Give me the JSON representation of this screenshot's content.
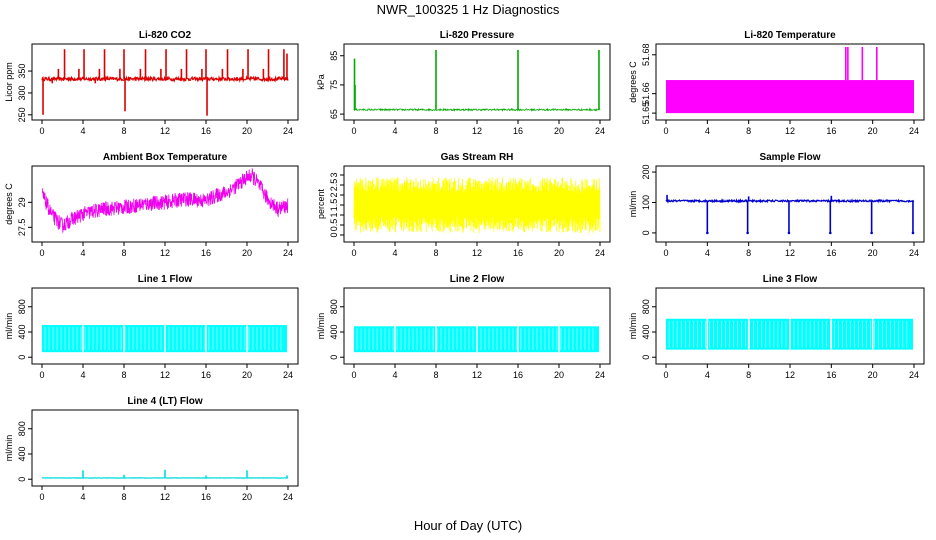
{
  "title": "NWR_100325  1 Hz Diagnostics",
  "xlabel": "Hour of Day (UTC)",
  "chart_data": [
    {
      "type": "line",
      "title": "Li-820 CO2",
      "ylabel": "Licor ppm",
      "color": "#dd0000",
      "xlim": [
        0,
        24
      ],
      "ylim": [
        245,
        405
      ],
      "yticks": [
        250,
        300,
        350
      ],
      "xticks": [
        0,
        4,
        8,
        12,
        16,
        20,
        24
      ],
      "baseline": 332,
      "band": 4,
      "spikes": [
        {
          "x": 0.1,
          "y": 250
        },
        {
          "x": 1.0,
          "y": 322
        },
        {
          "x": 1.6,
          "y": 355
        },
        {
          "x": 2.2,
          "y": 400
        },
        {
          "x": 3.6,
          "y": 355
        },
        {
          "x": 4.1,
          "y": 400
        },
        {
          "x": 5.2,
          "y": 322
        },
        {
          "x": 5.6,
          "y": 355
        },
        {
          "x": 6.1,
          "y": 400
        },
        {
          "x": 7.6,
          "y": 355
        },
        {
          "x": 8.0,
          "y": 400
        },
        {
          "x": 8.1,
          "y": 258
        },
        {
          "x": 9.6,
          "y": 355
        },
        {
          "x": 10.1,
          "y": 400
        },
        {
          "x": 11.6,
          "y": 355
        },
        {
          "x": 12.1,
          "y": 400
        },
        {
          "x": 13.6,
          "y": 355
        },
        {
          "x": 14.1,
          "y": 400
        },
        {
          "x": 15.6,
          "y": 355
        },
        {
          "x": 16.0,
          "y": 400
        },
        {
          "x": 16.1,
          "y": 248
        },
        {
          "x": 17.6,
          "y": 355
        },
        {
          "x": 18.1,
          "y": 400
        },
        {
          "x": 19.6,
          "y": 355
        },
        {
          "x": 20.1,
          "y": 400
        },
        {
          "x": 21.6,
          "y": 355
        },
        {
          "x": 22.1,
          "y": 400
        },
        {
          "x": 23.6,
          "y": 400
        },
        {
          "x": 23.9,
          "y": 390
        }
      ]
    },
    {
      "type": "line",
      "title": "Li-820 Pressure",
      "ylabel": "kPa",
      "color": "#00aa00",
      "xlim": [
        0,
        24
      ],
      "ylim": [
        64,
        88
      ],
      "yticks": [
        65,
        75,
        85
      ],
      "xticks": [
        0,
        4,
        8,
        12,
        16,
        20,
        24
      ],
      "baseline": 66.5,
      "band": 0.3,
      "spikes": [
        {
          "x": 0.05,
          "y": 84
        },
        {
          "x": 0.1,
          "y": 75
        },
        {
          "x": 8.0,
          "y": 87
        },
        {
          "x": 16.0,
          "y": 87
        },
        {
          "x": 23.9,
          "y": 87
        }
      ]
    },
    {
      "type": "area",
      "title": "Li-820 Temperature",
      "ylabel": "degrees C",
      "color": "#ff00ff",
      "xlim": [
        0,
        24
      ],
      "ylim": [
        51.648,
        51.684
      ],
      "yticks": [
        51.65,
        51.66,
        51.68
      ],
      "xticks": [
        0,
        4,
        8,
        12,
        16,
        20,
        24
      ],
      "band_low": 51.65,
      "band_high": 51.667,
      "spikes": [
        {
          "x": 17.4,
          "y": 51.684
        },
        {
          "x": 17.6,
          "y": 51.684
        },
        {
          "x": 19.0,
          "y": 51.684
        },
        {
          "x": 20.4,
          "y": 51.684
        }
      ]
    },
    {
      "type": "line",
      "title": "Ambient Box Temperature",
      "ylabel": "degrees C",
      "color": "#ee00ee",
      "xlim": [
        0,
        24
      ],
      "ylim": [
        26.8,
        31.0
      ],
      "yticks": [
        27.5,
        29.0
      ],
      "xticks": [
        0,
        4,
        8,
        12,
        16,
        20,
        24
      ],
      "x": [
        0,
        1,
        2,
        3,
        4,
        6,
        8,
        10,
        12,
        14,
        16,
        17,
        18,
        19,
        20,
        20.5,
        21,
        22,
        23,
        24
      ],
      "y": [
        29.5,
        28.2,
        27.6,
        28.0,
        28.3,
        28.6,
        28.7,
        28.9,
        29.0,
        29.2,
        29.1,
        29.4,
        29.6,
        30.0,
        30.5,
        30.6,
        30.2,
        29.2,
        28.6,
        28.8
      ],
      "band": 0.45
    },
    {
      "type": "line",
      "title": "Gas Stream RH",
      "ylabel": "percent",
      "color": "#ffff00",
      "xlim": [
        0,
        24
      ],
      "ylim": [
        -0.2,
        3.3
      ],
      "yticks": [
        0.0,
        0.5,
        1.0,
        1.5,
        2.0,
        2.5,
        3.0
      ],
      "xticks": [
        0,
        4,
        8,
        12,
        16,
        20,
        24
      ],
      "center": 1.4,
      "band_low": 0.1,
      "band_high": 2.9
    },
    {
      "type": "line",
      "title": "Sample Flow",
      "ylabel": "ml/min",
      "color": "#0000cc",
      "xlim": [
        0,
        24
      ],
      "ylim": [
        -20,
        210
      ],
      "yticks": [
        0,
        100,
        200
      ],
      "xticks": [
        0,
        4,
        8,
        12,
        16,
        20,
        24
      ],
      "baseline": 105,
      "band": 3,
      "dips": [
        {
          "x": 4.0,
          "y": 0
        },
        {
          "x": 7.9,
          "y": 0
        },
        {
          "x": 11.9,
          "y": 0
        },
        {
          "x": 15.9,
          "y": 0
        },
        {
          "x": 19.9,
          "y": 0
        },
        {
          "x": 23.9,
          "y": 0
        }
      ],
      "spikes": [
        {
          "x": 0.1,
          "y": 125
        },
        {
          "x": 8.0,
          "y": 120
        },
        {
          "x": 16.0,
          "y": 122
        }
      ]
    },
    {
      "type": "area",
      "title": "Line 1 Flow",
      "ylabel": "ml/min",
      "color": "#00ffff",
      "xlim": [
        0,
        24
      ],
      "ylim": [
        -60,
        1050
      ],
      "yticks": [
        0,
        400,
        800
      ],
      "xticks": [
        0,
        4,
        8,
        12,
        16,
        20,
        24
      ],
      "band_low": 80,
      "band_high": 510,
      "gaps": [
        4,
        8,
        12,
        16,
        20,
        24
      ]
    },
    {
      "type": "area",
      "title": "Line 2 Flow",
      "ylabel": "ml/min",
      "color": "#00ffff",
      "xlim": [
        0,
        24
      ],
      "ylim": [
        -60,
        1050
      ],
      "yticks": [
        0,
        400,
        800
      ],
      "xticks": [
        0,
        4,
        8,
        12,
        16,
        20,
        24
      ],
      "band_low": 80,
      "band_high": 490,
      "gaps": [
        4,
        8,
        12,
        16,
        20,
        24
      ]
    },
    {
      "type": "area",
      "title": "Line 3 Flow",
      "ylabel": "ml/min",
      "color": "#00ffff",
      "xlim": [
        0,
        24
      ],
      "ylim": [
        -60,
        1050
      ],
      "yticks": [
        0,
        400,
        800
      ],
      "xticks": [
        0,
        4,
        8,
        12,
        16,
        20,
        24
      ],
      "band_low": 120,
      "band_high": 610,
      "gaps": [
        4,
        8,
        12,
        16,
        20,
        24
      ]
    },
    {
      "type": "line",
      "title": "Line 4 (LT) Flow",
      "ylabel": "ml/min",
      "color": "#00dddd",
      "xlim": [
        0,
        24
      ],
      "ylim": [
        -60,
        1050
      ],
      "yticks": [
        0,
        400,
        800
      ],
      "xticks": [
        0,
        4,
        8,
        12,
        16,
        20,
        24
      ],
      "baseline": 20,
      "band": 3,
      "spikes": [
        {
          "x": 4.0,
          "y": 140
        },
        {
          "x": 8.0,
          "y": 70
        },
        {
          "x": 12.0,
          "y": 150
        },
        {
          "x": 16.0,
          "y": 60
        },
        {
          "x": 20.0,
          "y": 140
        },
        {
          "x": 23.9,
          "y": 60
        }
      ]
    }
  ]
}
